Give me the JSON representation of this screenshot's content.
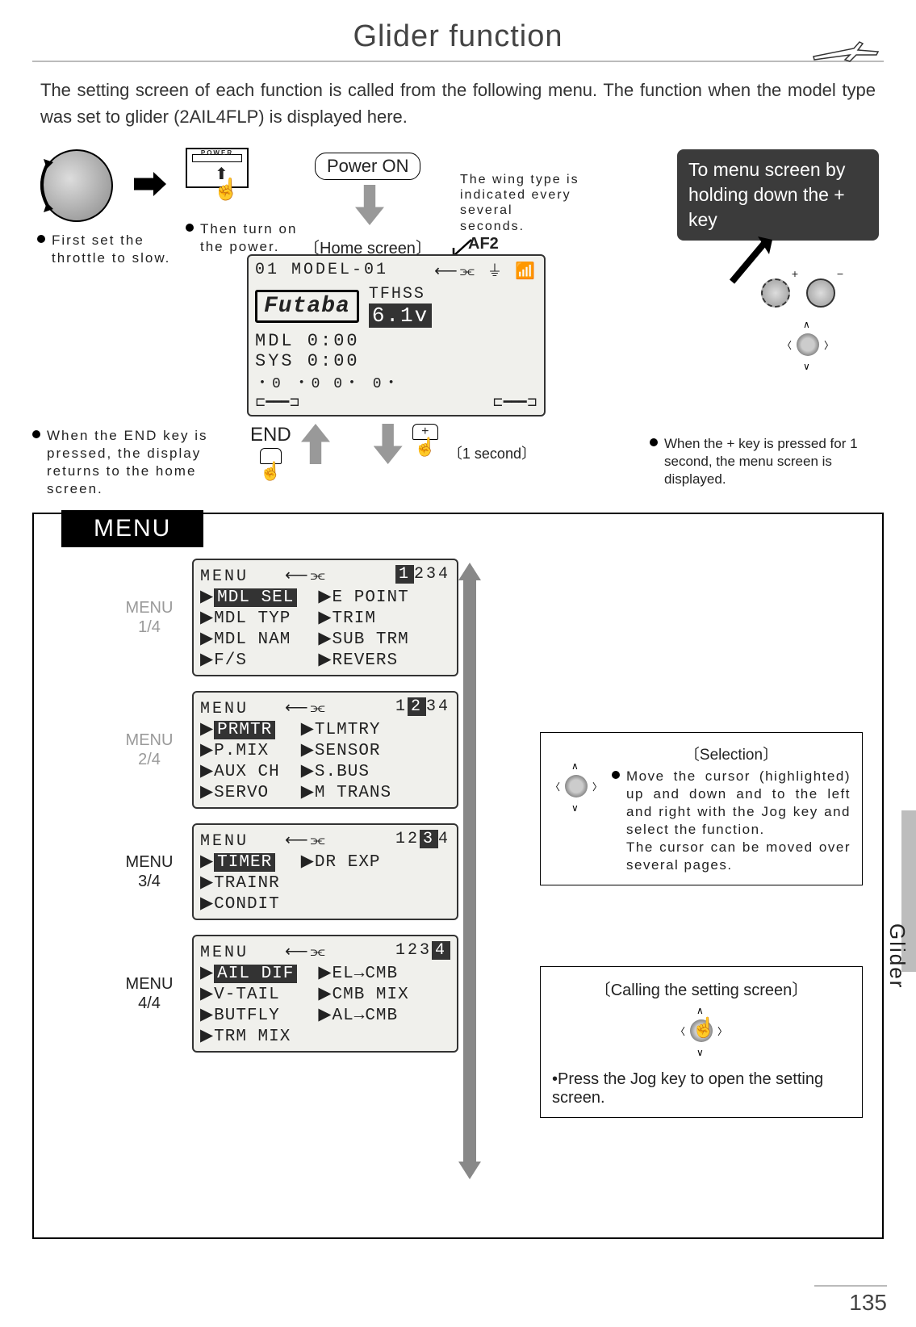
{
  "title": "Glider function",
  "intro": "The setting screen of each function is called from the following menu. The function when the model type was set to glider (2AIL4FLP) is displayed here.",
  "steps": {
    "throttle": "First set the throttle to slow.",
    "power": "Then turn on the power.",
    "power_on_btn": "Power ON",
    "home_label": "〔Home screen〕",
    "wing_note": "The wing type is indicated every several seconds.",
    "af2": "AF2",
    "callout": "To menu screen by holding down the + key",
    "end_note": "When the END key is pressed, the display returns to the home screen.",
    "end_btn": "END",
    "one_sec": "〔1 second〕",
    "plus_note": "When the + key is pressed for 1 second, the menu screen is displayed."
  },
  "home_lcd": {
    "line1_left": "01",
    "line1_right": "MODEL-01",
    "brand": "Futaba",
    "proto": "TFHSS",
    "volt": "6.1v",
    "mdl": "MDL  0:00",
    "sys": "SYS  0:00",
    "bottom": "・0     ・0          0・     0・"
  },
  "menu_label": "MENU",
  "menus": [
    {
      "tag": "MENU 1/4",
      "pages": "1234",
      "pg_hi": 0,
      "left": [
        "MDL SEL",
        "MDL TYP",
        "MDL NAM",
        "F/S"
      ],
      "right": [
        "E POINT",
        "TRIM",
        "SUB TRM",
        "REVERS"
      ],
      "hi": 0,
      "dark_tag": false
    },
    {
      "tag": "MENU 2/4",
      "pages": "1234",
      "pg_hi": 1,
      "left": [
        "PRMTR",
        "P.MIX",
        "AUX CH",
        "SERVO"
      ],
      "right": [
        "TLMTRY",
        "SENSOR",
        "S.BUS",
        "M TRANS"
      ],
      "hi": 0,
      "dark_tag": false
    },
    {
      "tag": "MENU 3/4",
      "pages": "1234",
      "pg_hi": 2,
      "left": [
        "TIMER",
        "TRAINR",
        "CONDIT"
      ],
      "right": [
        "DR EXP"
      ],
      "hi": 0,
      "dark_tag": true
    },
    {
      "tag": "MENU 4/4",
      "pages": "1234",
      "pg_hi": 3,
      "left": [
        "AIL DIF",
        "V-TAIL",
        "BUTFLY",
        "TRM MIX"
      ],
      "right": [
        "EL→CMB",
        "CMB MIX",
        "AL→CMB"
      ],
      "hi": 0,
      "dark_tag": true
    }
  ],
  "selection": {
    "title": "〔Selection〕",
    "text": "Move the cursor (highlighted) up and down and to the left and right with the Jog key and select the function.\nThe cursor can be moved over several pages."
  },
  "calling": {
    "title": "〔Calling the setting screen〕",
    "text": "Press the Jog key to open the setting screen."
  },
  "side_label": "Glider",
  "page_num": "135",
  "power_word": "POWER"
}
